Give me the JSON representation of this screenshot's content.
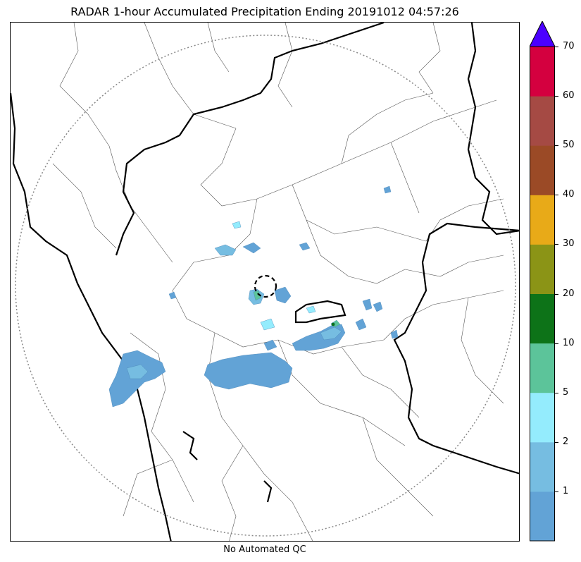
{
  "title": "RADAR 1-hour Accumulated Precipitation Ending 20191012 04:57:26",
  "footer": "No Automated QC",
  "colorbar": {
    "levels": [
      "1",
      "2",
      "5",
      "10",
      "20",
      "30",
      "40",
      "50",
      "60",
      "70"
    ],
    "colors": [
      "#62a3d6",
      "#76bde1",
      "#94ecfd",
      "#5cc49a",
      "#0d7318",
      "#8b9416",
      "#e8aa18",
      "#9b4a26",
      "#a54a44",
      "#d4003f"
    ],
    "extend_color": "#4b00ff"
  },
  "map": {
    "state_border_color": "#000000",
    "district_border_color": "#555555",
    "range_ring_color": "#888888",
    "radar_site_marker": "dashed-circle"
  }
}
